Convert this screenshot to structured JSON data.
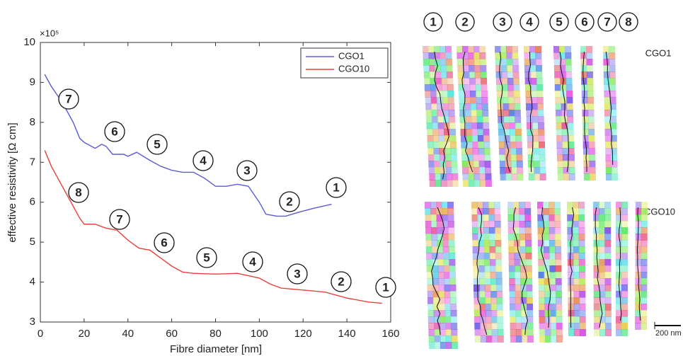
{
  "chart_data": {
    "type": "line",
    "xlabel": "Fibre diameter [nm]",
    "ylabel": "effective resistivity [Ω cm]",
    "y_scale_label": "×10⁵",
    "xlim": [
      0,
      160
    ],
    "xticks": [
      0,
      20,
      40,
      60,
      80,
      100,
      120,
      140,
      160
    ],
    "ylim": [
      3,
      10
    ],
    "yticks": [
      3,
      4,
      5,
      6,
      7,
      8,
      9,
      10
    ],
    "legend": "upper right",
    "series": [
      {
        "name": "CGO1",
        "color": "#5b5bd6",
        "x": [
          2,
          5,
          10,
          15,
          18,
          20,
          25,
          28,
          30,
          33,
          38,
          40,
          44,
          50,
          55,
          60,
          65,
          70,
          75,
          80,
          85,
          90,
          95,
          100,
          103,
          108,
          112,
          118,
          125,
          133
        ],
        "values": [
          9.2,
          8.9,
          8.5,
          8.0,
          7.6,
          7.5,
          7.35,
          7.45,
          7.4,
          7.2,
          7.2,
          7.15,
          7.25,
          7.05,
          6.9,
          6.8,
          6.75,
          6.75,
          6.6,
          6.4,
          6.4,
          6.45,
          6.4,
          6.0,
          5.7,
          5.65,
          5.65,
          5.75,
          5.85,
          5.95
        ]
      },
      {
        "name": "CGO10",
        "color": "#e8403e",
        "x": [
          2,
          5,
          10,
          15,
          18,
          20,
          25,
          30,
          35,
          40,
          45,
          50,
          55,
          60,
          65,
          70,
          80,
          90,
          100,
          105,
          110,
          120,
          130,
          140,
          150,
          156
        ],
        "values": [
          7.3,
          6.9,
          6.4,
          5.9,
          5.6,
          5.45,
          5.45,
          5.35,
          5.3,
          5.05,
          4.85,
          4.8,
          4.6,
          4.4,
          4.25,
          4.22,
          4.2,
          4.22,
          4.1,
          3.95,
          3.85,
          3.8,
          3.75,
          3.6,
          3.5,
          3.47
        ]
      }
    ],
    "annotations": {
      "CGO1": [
        "7",
        "6",
        "5",
        "4",
        "3",
        "2",
        "1"
      ],
      "CGO10": [
        "8",
        "7",
        "6",
        "5",
        "4",
        "3",
        "2",
        "1"
      ]
    }
  },
  "micrographs": {
    "columns": [
      "1",
      "2",
      "3",
      "4",
      "5",
      "6",
      "7",
      "8"
    ],
    "rows": [
      "CGO1",
      "CGO10"
    ],
    "scale_bar": "200 nm"
  }
}
